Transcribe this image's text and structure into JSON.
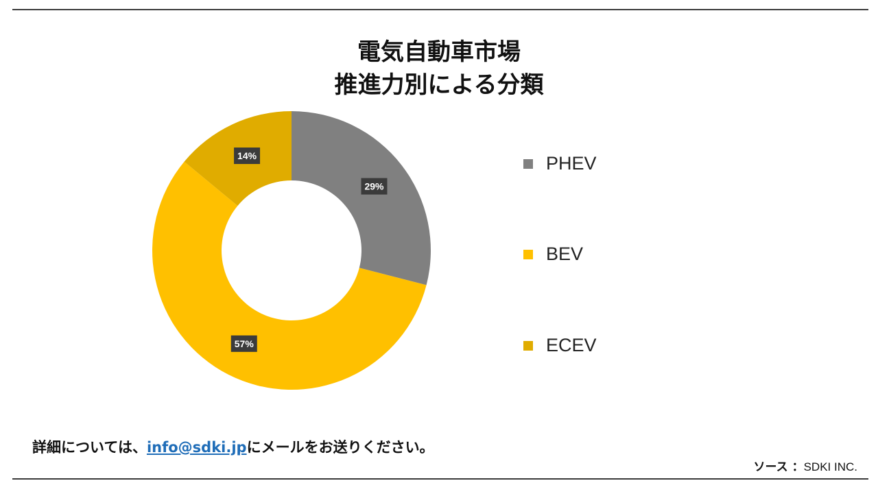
{
  "title": {
    "line1": "電気自動車市場",
    "line2": "推進力別による分類"
  },
  "chart_data": {
    "type": "pie",
    "donut": true,
    "title": "電気自動車市場 推進力別による分類",
    "categories": [
      "PHEV",
      "BEV",
      "ECEV"
    ],
    "values": [
      29,
      57,
      14
    ],
    "labels": [
      "29%",
      "57%",
      "14%"
    ],
    "colors": [
      "#808080",
      "#FFC000",
      "#E0AC00"
    ],
    "legend_position": "right",
    "start_angle_deg": 0,
    "direction": "clockwise"
  },
  "legend": {
    "items": [
      {
        "label": "PHEV",
        "color": "#808080"
      },
      {
        "label": "BEV",
        "color": "#FFC000"
      },
      {
        "label": "ECEV",
        "color": "#E0AC00"
      }
    ]
  },
  "footer": {
    "prefix": "詳細については、",
    "email": "info@sdki.jp",
    "suffix": "にメールをお送りください。"
  },
  "source": {
    "key": "ソース ：",
    "value": "SDKI INC."
  },
  "colors": {
    "link": "#1f6db8",
    "rule": "#3a3a3a",
    "data_label_bg": "#3b3b3b"
  }
}
